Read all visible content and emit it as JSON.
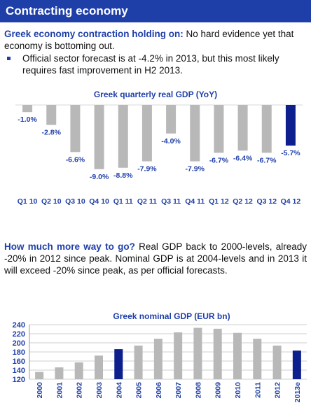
{
  "header": {
    "title": "Contracting economy"
  },
  "section1": {
    "lead": "Greek economy contraction holding on:",
    "text": " No hard evidence yet that economy is bottoming out.",
    "bullet": "Official sector forecast is at -4.2% in 2013, but this most likely requires fast improvement in H2 2013."
  },
  "section2": {
    "lead": "How much more way to go?",
    "text": " Real GDP back to 2000-levels, already -20% in 2012 since peak. Nominal GDP is at 2004-levels and in 2013 it will exceed -20% since peak, as per official forecasts."
  },
  "colors": {
    "brand": "#1f3fa8",
    "bar": "#b8b8b8",
    "highlight": "#0c1f8c"
  },
  "chart_data": [
    {
      "type": "bar",
      "title": "Greek quarterly real GDP (YoY)",
      "categories": [
        "Q1 10",
        "Q2 10",
        "Q3 10",
        "Q4 10",
        "Q1 11",
        "Q2 11",
        "Q3 11",
        "Q4 11",
        "Q1 12",
        "Q2 12",
        "Q3 12",
        "Q4 12"
      ],
      "values": [
        -1.0,
        -2.8,
        -6.6,
        -9.0,
        -8.8,
        -7.9,
        -4.0,
        -7.9,
        -6.7,
        -6.4,
        -6.7,
        -5.7
      ],
      "value_labels": [
        "-1.0%",
        "-2.8%",
        "-6.6%",
        "-9.0%",
        "-8.8%",
        "-7.9%",
        "-4.0%",
        "-7.9%",
        "-6.7%",
        "-6.4%",
        "-6.7%",
        "-5.7%"
      ],
      "highlight_index": 11,
      "ylim": [
        -10,
        0
      ],
      "grid": false
    },
    {
      "type": "bar",
      "title": "Greek nominal GDP (EUR bn)",
      "categories": [
        "2000",
        "2001",
        "2002",
        "2003",
        "2004",
        "2005",
        "2006",
        "2007",
        "2008",
        "2009",
        "2010",
        "2011",
        "2012",
        "2013e"
      ],
      "values": [
        136,
        146,
        157,
        172,
        186,
        194,
        209,
        223,
        233,
        231,
        222,
        209,
        194,
        183
      ],
      "highlight_indices": [
        4,
        13
      ],
      "ylim": [
        120,
        240
      ],
      "yticks": [
        120,
        140,
        160,
        180,
        200,
        220,
        240
      ],
      "grid": true
    }
  ]
}
